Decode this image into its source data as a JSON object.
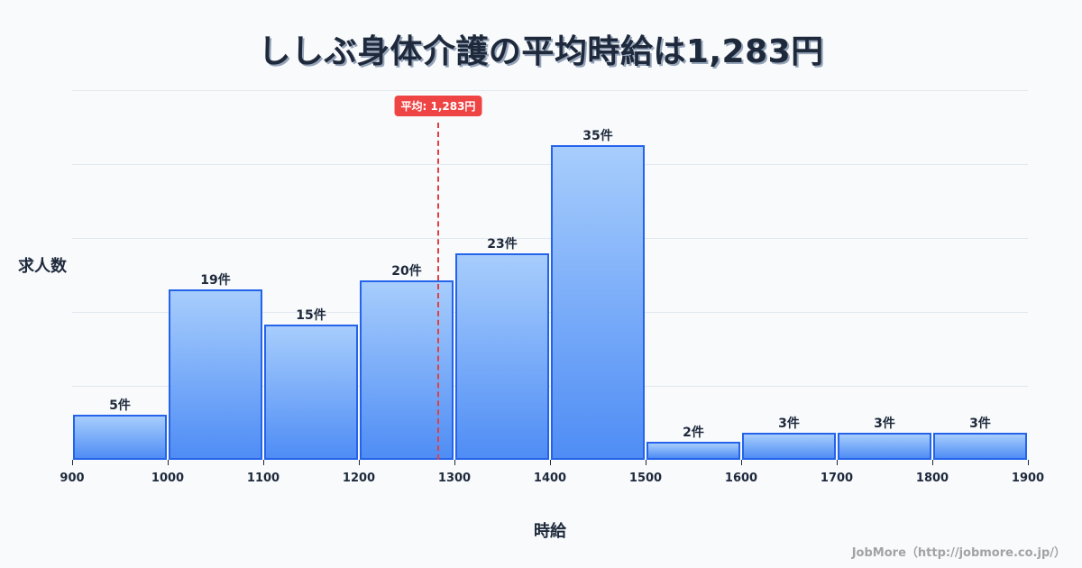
{
  "title": "ししぶ身体介護の平均時給は1,283円",
  "y_axis_label": "求人数",
  "x_axis_label": "時給",
  "credit": "JobMore（http://jobmore.co.jp/）",
  "average": {
    "value": 1283,
    "label": "平均: 1,283円",
    "color": "#ef4444"
  },
  "bar_color": "#4f8df5",
  "bar_border_color": "#2563eb",
  "x_ticks": [
    "900",
    "1000",
    "1100",
    "1200",
    "1300",
    "1400",
    "1500",
    "1600",
    "1700",
    "1800",
    "1900"
  ],
  "bars": [
    {
      "range": "900-1000",
      "count": 5,
      "label": "5件"
    },
    {
      "range": "1000-1100",
      "count": 19,
      "label": "19件"
    },
    {
      "range": "1100-1200",
      "count": 15,
      "label": "15件"
    },
    {
      "range": "1200-1300",
      "count": 20,
      "label": "20件"
    },
    {
      "range": "1300-1400",
      "count": 23,
      "label": "23件"
    },
    {
      "range": "1400-1500",
      "count": 35,
      "label": "35件"
    },
    {
      "range": "1500-1600",
      "count": 2,
      "label": "2件"
    },
    {
      "range": "1600-1700",
      "count": 3,
      "label": "3件"
    },
    {
      "range": "1700-1800",
      "count": 3,
      "label": "3件"
    },
    {
      "range": "1800-1900",
      "count": 3,
      "label": "3件"
    }
  ],
  "chart_data": {
    "type": "bar",
    "title": "ししぶ身体介護の平均時給は1,283円",
    "xlabel": "時給",
    "ylabel": "求人数",
    "categories": [
      "900-1000",
      "1000-1100",
      "1100-1200",
      "1200-1300",
      "1300-1400",
      "1400-1500",
      "1500-1600",
      "1600-1700",
      "1700-1800",
      "1800-1900"
    ],
    "values": [
      5,
      19,
      15,
      20,
      23,
      35,
      2,
      3,
      3,
      3
    ],
    "data_labels": [
      "5件",
      "19件",
      "15件",
      "20件",
      "23件",
      "35件",
      "2件",
      "3件",
      "3件",
      "3件"
    ],
    "x_ticks": [
      900,
      1000,
      1100,
      1200,
      1300,
      1400,
      1500,
      1600,
      1700,
      1800,
      1900
    ],
    "xlim": [
      900,
      1900
    ],
    "ylim": [
      0,
      41
    ],
    "grid": true,
    "annotations": [
      {
        "type": "vline",
        "x": 1283,
        "label": "平均: 1,283円",
        "style": "dashed",
        "color": "#ef4444"
      }
    ],
    "legend": null
  }
}
